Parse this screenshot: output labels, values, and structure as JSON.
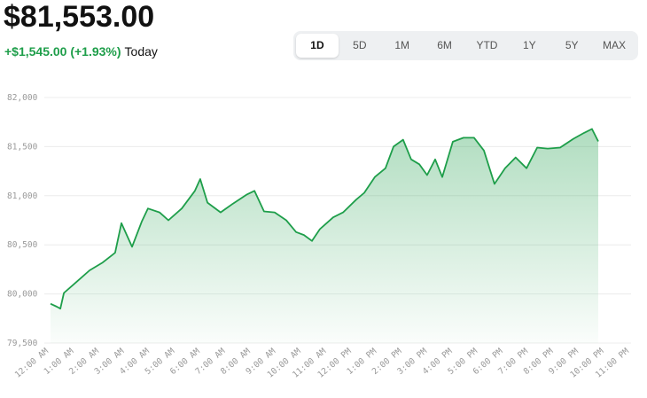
{
  "header": {
    "price": "$81,553.00",
    "change": "+$1,545.00 (+1.93%)",
    "period": "Today"
  },
  "tabs": [
    "1D",
    "5D",
    "1M",
    "6M",
    "YTD",
    "1Y",
    "5Y",
    "MAX"
  ],
  "selected_tab": 0,
  "chart_data": {
    "type": "area",
    "color": "#1e9e4a",
    "x": [
      0.07,
      0.32,
      0.46,
      0.6,
      1.09,
      1.62,
      2.14,
      2.63,
      2.88,
      3.3,
      3.69,
      3.93,
      4.39,
      4.74,
      5.27,
      5.79,
      6.0,
      6.29,
      6.81,
      7.3,
      7.83,
      8.15,
      8.53,
      8.95,
      9.41,
      9.8,
      10.11,
      10.43,
      10.74,
      11.27,
      11.66,
      12.18,
      12.5,
      12.92,
      13.34,
      13.66,
      14.04,
      14.36,
      14.68,
      14.99,
      15.31,
      15.59,
      16.01,
      16.43,
      16.85,
      17.24,
      17.66,
      18.08,
      18.5,
      18.93,
      19.35,
      19.77,
      20.26,
      20.79,
      21.21,
      21.52,
      21.77
    ],
    "values": [
      79900,
      79870,
      79850,
      80010,
      80120,
      80240,
      80320,
      80420,
      80720,
      80480,
      80740,
      80870,
      80830,
      80750,
      80870,
      81050,
      81170,
      80930,
      80830,
      80920,
      81010,
      81050,
      80840,
      80830,
      80750,
      80630,
      80600,
      80540,
      80660,
      80780,
      80830,
      80960,
      81030,
      81190,
      81280,
      81500,
      81570,
      81370,
      81320,
      81210,
      81370,
      81190,
      81550,
      81590,
      81590,
      81460,
      81120,
      81280,
      81390,
      81280,
      81490,
      81480,
      81490,
      81580,
      81640,
      81680,
      81553
    ],
    "ylim": [
      79500,
      82000
    ],
    "yticks": [
      {
        "value": 79500,
        "label": "79,500"
      },
      {
        "value": 80000,
        "label": "80,000"
      },
      {
        "value": 80500,
        "label": "80,500"
      },
      {
        "value": 81000,
        "label": "81,000"
      },
      {
        "value": 81500,
        "label": "81,500"
      },
      {
        "value": 82000,
        "label": "82,000"
      }
    ],
    "xlim": [
      0,
      23
    ],
    "xticks": [
      {
        "value": 0,
        "label": "12:00 AM"
      },
      {
        "value": 1,
        "label": "1:00 AM"
      },
      {
        "value": 2,
        "label": "2:00 AM"
      },
      {
        "value": 3,
        "label": "3:00 AM"
      },
      {
        "value": 4,
        "label": "4:00 AM"
      },
      {
        "value": 5,
        "label": "5:00 AM"
      },
      {
        "value": 6,
        "label": "6:00 AM"
      },
      {
        "value": 7,
        "label": "7:00 AM"
      },
      {
        "value": 8,
        "label": "8:00 AM"
      },
      {
        "value": 9,
        "label": "9:00 AM"
      },
      {
        "value": 10,
        "label": "10:00 AM"
      },
      {
        "value": 11,
        "label": "11:00 AM"
      },
      {
        "value": 12,
        "label": "12:00 PM"
      },
      {
        "value": 13,
        "label": "1:00 PM"
      },
      {
        "value": 14,
        "label": "2:00 PM"
      },
      {
        "value": 15,
        "label": "3:00 PM"
      },
      {
        "value": 16,
        "label": "4:00 PM"
      },
      {
        "value": 17,
        "label": "5:00 PM"
      },
      {
        "value": 18,
        "label": "6:00 PM"
      },
      {
        "value": 19,
        "label": "7:00 PM"
      },
      {
        "value": 20,
        "label": "8:00 PM"
      },
      {
        "value": 21,
        "label": "9:00 PM"
      },
      {
        "value": 22,
        "label": "10:00 PM"
      },
      {
        "value": 23,
        "label": "11:00 PM"
      }
    ],
    "grid": true
  }
}
